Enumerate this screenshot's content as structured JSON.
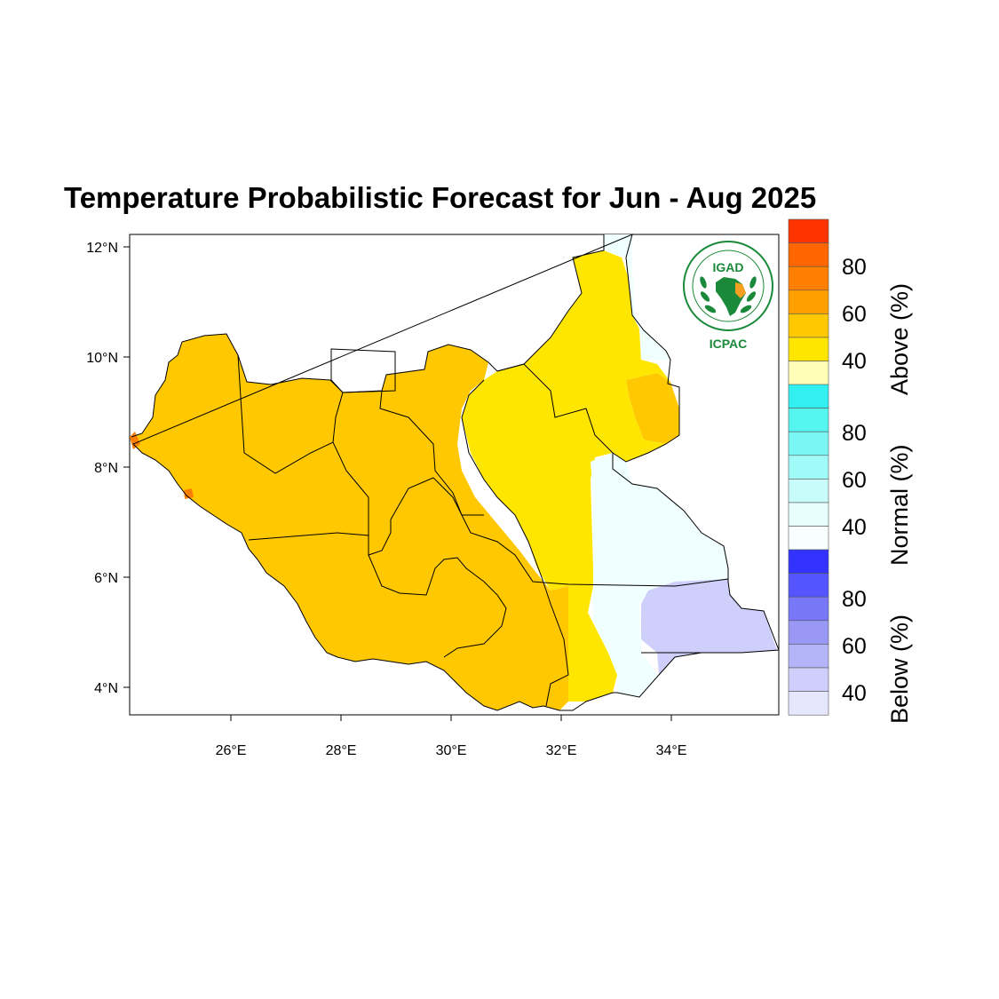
{
  "title": "Temperature Probabilistic Forecast for Jun - Aug 2025",
  "axes": {
    "x_ticks": [
      "26°E",
      "28°E",
      "30°E",
      "32°E",
      "34°E"
    ],
    "y_ticks": [
      "12°N",
      "10°N",
      "8°N",
      "6°N",
      "4°N"
    ]
  },
  "logo": {
    "name": "IGAD",
    "sub": "ICPAC"
  },
  "legend": {
    "above": {
      "title": "Above (%)",
      "labels": [
        "80",
        "60",
        "40"
      ],
      "colors": [
        "#ff3300",
        "#ff6600",
        "#ff8000",
        "#ffa000",
        "#ffc800",
        "#ffe600",
        "#ffffb8"
      ]
    },
    "normal": {
      "title": "Normal (%)",
      "labels": [
        "80",
        "60",
        "40"
      ],
      "colors": [
        "#33f0f0",
        "#55f5f0",
        "#7af7f5",
        "#a0faf8",
        "#c8fcfa",
        "#e6fffd",
        "#f8ffff"
      ]
    },
    "below": {
      "title": "Below (%)",
      "labels": [
        "80",
        "60",
        "40"
      ],
      "colors": [
        "#3333ff",
        "#5555ff",
        "#7777f7",
        "#9999f5",
        "#b4b4f8",
        "#cfcffb",
        "#e6e6fd"
      ]
    }
  },
  "regions": {
    "above_50_60": "#ffc800",
    "above_40_50": "#ffe600",
    "normal_40_50": "#f0ffff",
    "below_40_50": "#cfcffb",
    "above_60_70": "#ff8000"
  }
}
